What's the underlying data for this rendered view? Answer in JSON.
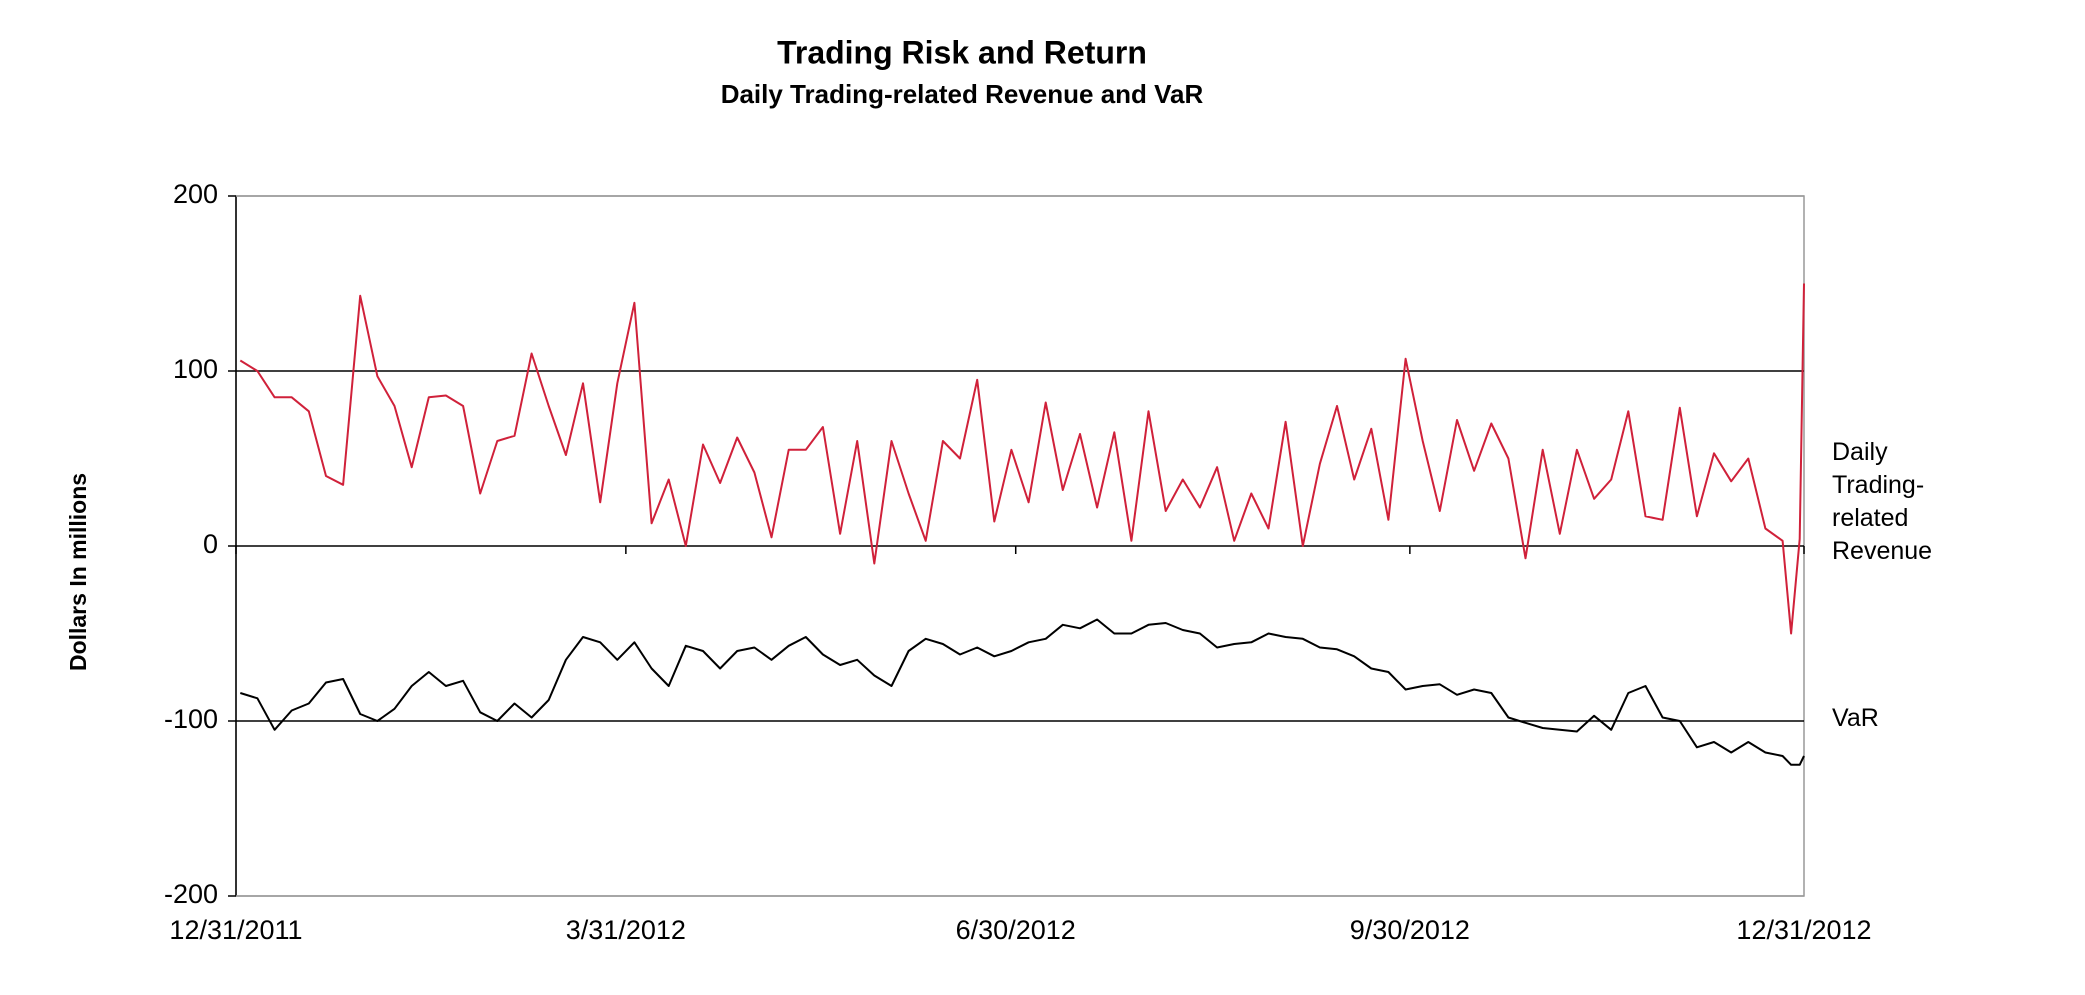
{
  "chart_data": {
    "type": "line",
    "title": "Trading Risk and Return",
    "subtitle": "Daily Trading-related Revenue and VaR",
    "y_label": "Dollars In millions",
    "ylim": [
      -200,
      200
    ],
    "yticks": [
      200,
      100,
      0,
      -100,
      -200
    ],
    "xlim": [
      "2011-12-31",
      "2012-12-31"
    ],
    "xticks": [
      {
        "value": "2011-12-31",
        "label": "12/31/2011"
      },
      {
        "value": "2012-03-31",
        "label": "3/31/2012"
      },
      {
        "value": "2012-06-30",
        "label": "6/30/2012"
      },
      {
        "value": "2012-09-30",
        "label": "9/30/2012"
      },
      {
        "value": "2012-12-31",
        "label": "12/31/2012"
      }
    ],
    "grid": true,
    "x": [
      "2012-01-01",
      "2012-01-05",
      "2012-01-09",
      "2012-01-13",
      "2012-01-17",
      "2012-01-21",
      "2012-01-25",
      "2012-01-29",
      "2012-02-02",
      "2012-02-06",
      "2012-02-10",
      "2012-02-14",
      "2012-02-18",
      "2012-02-22",
      "2012-02-26",
      "2012-03-01",
      "2012-03-05",
      "2012-03-09",
      "2012-03-13",
      "2012-03-17",
      "2012-03-21",
      "2012-03-25",
      "2012-03-29",
      "2012-04-02",
      "2012-04-06",
      "2012-04-10",
      "2012-04-14",
      "2012-04-18",
      "2012-04-22",
      "2012-04-26",
      "2012-04-30",
      "2012-05-04",
      "2012-05-08",
      "2012-05-12",
      "2012-05-16",
      "2012-05-20",
      "2012-05-24",
      "2012-05-28",
      "2012-06-01",
      "2012-06-05",
      "2012-06-09",
      "2012-06-13",
      "2012-06-17",
      "2012-06-21",
      "2012-06-25",
      "2012-06-29",
      "2012-07-03",
      "2012-07-07",
      "2012-07-11",
      "2012-07-15",
      "2012-07-19",
      "2012-07-23",
      "2012-07-27",
      "2012-07-31",
      "2012-08-04",
      "2012-08-08",
      "2012-08-12",
      "2012-08-16",
      "2012-08-20",
      "2012-08-24",
      "2012-08-28",
      "2012-09-01",
      "2012-09-05",
      "2012-09-09",
      "2012-09-13",
      "2012-09-17",
      "2012-09-21",
      "2012-09-25",
      "2012-09-29",
      "2012-10-03",
      "2012-10-07",
      "2012-10-11",
      "2012-10-15",
      "2012-10-19",
      "2012-10-23",
      "2012-10-27",
      "2012-10-31",
      "2012-11-04",
      "2012-11-08",
      "2012-11-12",
      "2012-11-16",
      "2012-11-20",
      "2012-11-24",
      "2012-11-28",
      "2012-12-02",
      "2012-12-06",
      "2012-12-10",
      "2012-12-14",
      "2012-12-18",
      "2012-12-22",
      "2012-12-26",
      "2012-12-28",
      "2012-12-30",
      "2012-12-31"
    ],
    "series": [
      {
        "name": "Daily Trading-related Revenue",
        "color": "#d0213a",
        "values": [
          106,
          100,
          85,
          85,
          77,
          40,
          35,
          143,
          97,
          80,
          45,
          85,
          86,
          80,
          30,
          60,
          63,
          110,
          80,
          52,
          93,
          25,
          93,
          139,
          13,
          38,
          0,
          58,
          36,
          62,
          42,
          5,
          55,
          55,
          68,
          7,
          60,
          -10,
          60,
          30,
          3,
          60,
          50,
          95,
          14,
          55,
          25,
          82,
          32,
          64,
          22,
          65,
          3,
          77,
          20,
          38,
          22,
          45,
          3,
          30,
          10,
          71,
          0,
          47,
          80,
          38,
          67,
          15,
          107,
          60,
          20,
          72,
          43,
          70,
          50,
          -7,
          55,
          7,
          55,
          27,
          38,
          77,
          17,
          15,
          79,
          17,
          53,
          37,
          50,
          10,
          3,
          -50,
          4,
          150
        ]
      },
      {
        "name": "VaR",
        "color": "#000000",
        "values": [
          -84,
          -87,
          -105,
          -94,
          -90,
          -78,
          -76,
          -96,
          -100,
          -93,
          -80,
          -72,
          -80,
          -77,
          -95,
          -100,
          -90,
          -98,
          -88,
          -65,
          -52,
          -55,
          -65,
          -55,
          -70,
          -80,
          -57,
          -60,
          -70,
          -60,
          -58,
          -65,
          -57,
          -52,
          -62,
          -68,
          -65,
          -74,
          -80,
          -60,
          -53,
          -56,
          -62,
          -58,
          -63,
          -60,
          -55,
          -53,
          -45,
          -47,
          -42,
          -50,
          -50,
          -45,
          -44,
          -48,
          -50,
          -58,
          -56,
          -55,
          -50,
          -52,
          -53,
          -58,
          -59,
          -63,
          -70,
          -72,
          -82,
          -80,
          -79,
          -85,
          -82,
          -84,
          -98,
          -101,
          -104,
          -105,
          -106,
          -97,
          -105,
          -84,
          -80,
          -98,
          -100,
          -115,
          -112,
          -118,
          -112,
          -118,
          -120,
          -125,
          -125,
          -120
        ]
      }
    ]
  }
}
